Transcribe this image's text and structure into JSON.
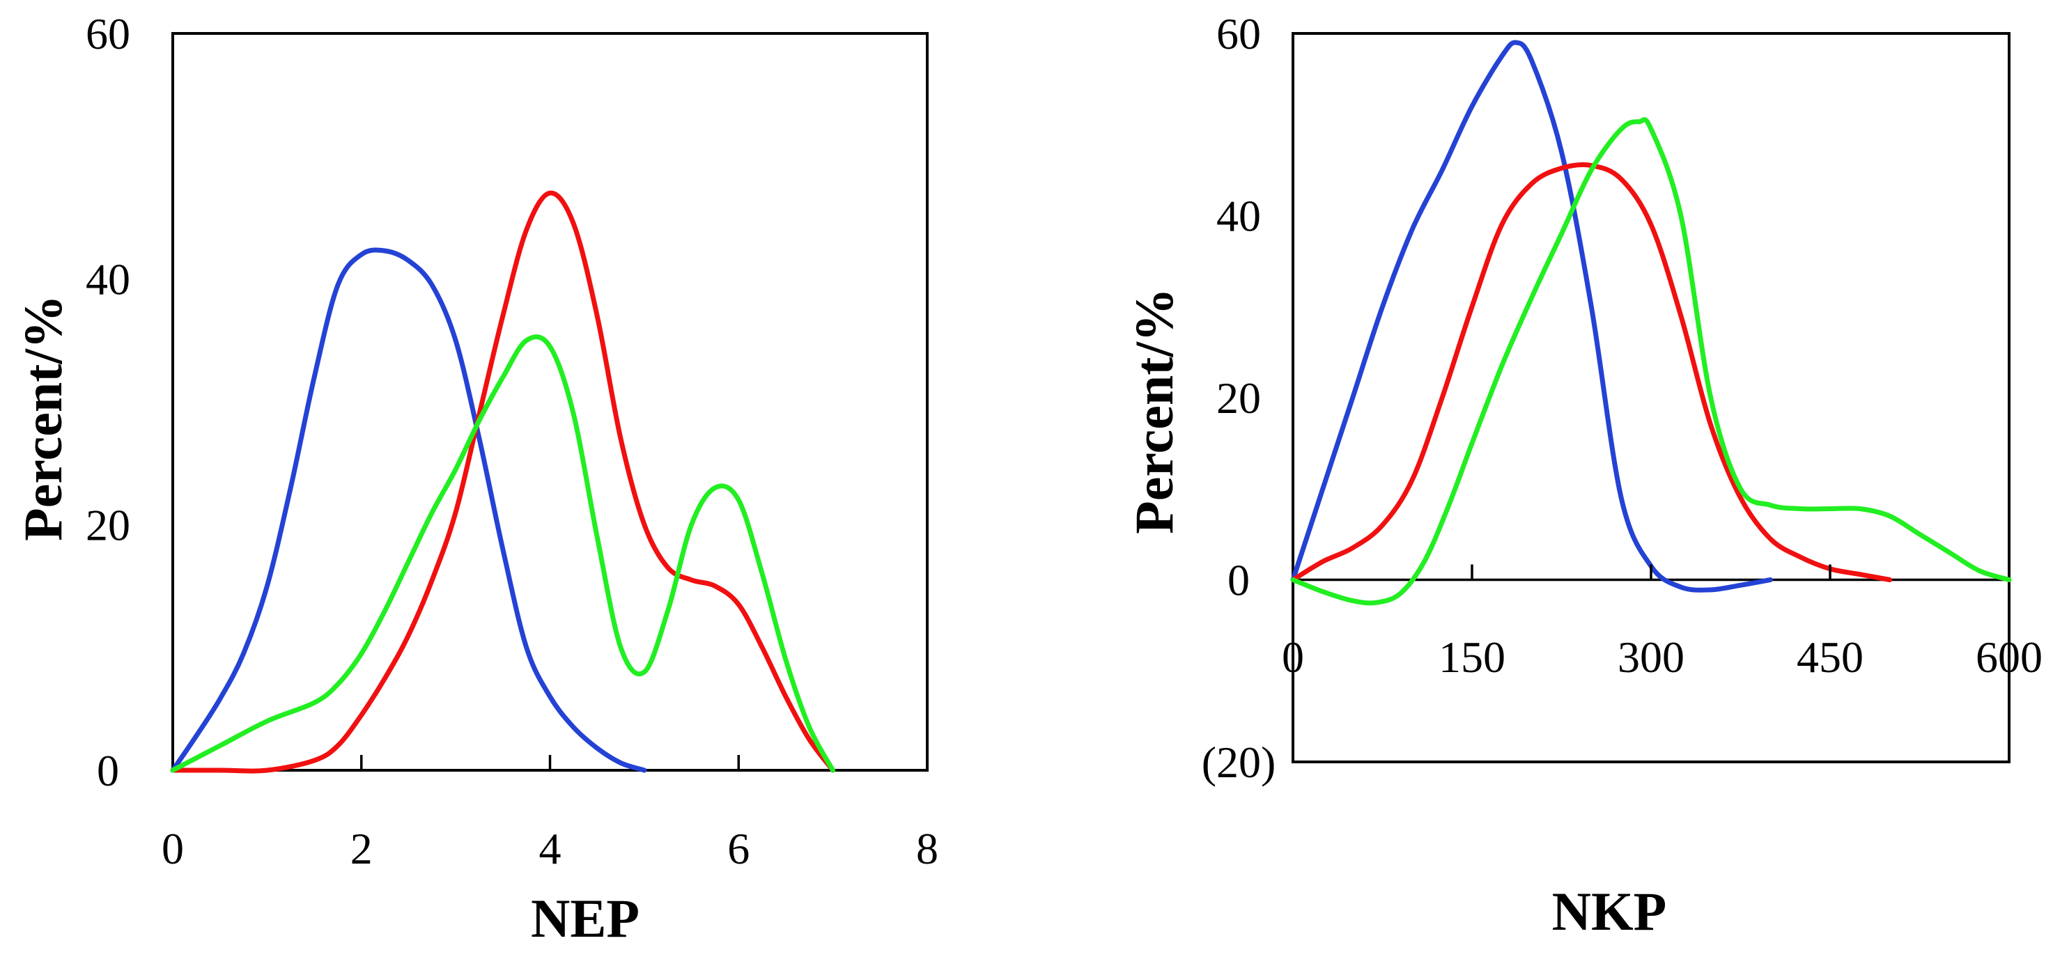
{
  "chart_data": [
    {
      "type": "line",
      "title": "",
      "xlabel": "NEP",
      "ylabel": "Percent/%",
      "xlim": [
        0,
        8
      ],
      "ylim": [
        0,
        60
      ],
      "xticks": [
        0,
        2,
        4,
        6,
        8
      ],
      "yticks": [
        0,
        20,
        40,
        60
      ],
      "xtick_labels": [
        "0",
        "2",
        "4",
        "6",
        "8"
      ],
      "ytick_labels": [
        "0",
        "20",
        "40",
        "60"
      ],
      "legend": [],
      "series": [
        {
          "name": "blue",
          "color": "#2442d4",
          "x": [
            0,
            0.25,
            0.5,
            0.75,
            1,
            1.25,
            1.5,
            1.75,
            2,
            2.25,
            2.5,
            2.75,
            3,
            3.25,
            3.5,
            3.75,
            4,
            4.25,
            4.5,
            4.75,
            5
          ],
          "y": [
            0,
            2.8,
            5.8,
            9.5,
            15,
            23,
            32,
            39.5,
            42,
            42.3,
            41.5,
            39.5,
            35,
            27,
            18,
            10,
            6,
            3.5,
            1.8,
            0.6,
            0
          ]
        },
        {
          "name": "red",
          "color": "#f01010",
          "x": [
            0,
            0.5,
            1,
            1.5,
            1.75,
            2,
            2.25,
            2.5,
            2.75,
            3,
            3.25,
            3.5,
            3.75,
            4,
            4.25,
            4.5,
            4.75,
            5,
            5.25,
            5.5,
            5.75,
            6,
            6.25,
            6.5,
            6.75,
            7
          ],
          "y": [
            0,
            0,
            0,
            0.8,
            2,
            4.5,
            7.5,
            11,
            15.5,
            21,
            29,
            37,
            44,
            47,
            44.5,
            37,
            27,
            20,
            16.5,
            15.5,
            15,
            13.5,
            10,
            6,
            2.5,
            0
          ]
        },
        {
          "name": "green",
          "color": "#22ee22",
          "x": [
            0,
            0.5,
            1,
            1.5,
            1.75,
            2,
            2.25,
            2.5,
            2.75,
            3,
            3.25,
            3.5,
            3.75,
            4,
            4.25,
            4.5,
            4.75,
            5,
            5.25,
            5.5,
            5.75,
            6,
            6.25,
            6.5,
            6.75,
            7
          ],
          "y": [
            0,
            2,
            4,
            5.5,
            7,
            9.5,
            13,
            17,
            21,
            24.5,
            28.5,
            32,
            35,
            34.5,
            29,
            19,
            10,
            8,
            13,
            20,
            23,
            22,
            16,
            9,
            3.5,
            0
          ]
        }
      ]
    },
    {
      "type": "line",
      "title": "",
      "xlabel": "NKP",
      "ylabel": "Percent/%",
      "xlim": [
        0,
        600
      ],
      "ylim": [
        -20,
        60
      ],
      "xticks": [
        0,
        150,
        300,
        450,
        600
      ],
      "yticks": [
        -20,
        0,
        20,
        40,
        60
      ],
      "xtick_labels": [
        "0",
        "150",
        "300",
        "450",
        "600"
      ],
      "ytick_labels": [
        "(20)",
        "0",
        "20",
        "40",
        "60"
      ],
      "legend": [],
      "series": [
        {
          "name": "blue",
          "color": "#2442d4",
          "x": [
            0,
            25,
            50,
            75,
            100,
            125,
            150,
            175,
            187,
            200,
            225,
            250,
            275,
            300,
            325,
            350,
            375,
            400
          ],
          "y": [
            0,
            10,
            20,
            30,
            38.5,
            45,
            52,
            57.5,
            59,
            57,
            47,
            30,
            9,
            1.5,
            -0.8,
            -1.1,
            -0.6,
            0
          ]
        },
        {
          "name": "red",
          "color": "#f01010",
          "x": [
            0,
            25,
            50,
            75,
            100,
            125,
            150,
            175,
            200,
            225,
            250,
            275,
            300,
            325,
            350,
            375,
            400,
            425,
            450,
            475,
            500
          ],
          "y": [
            0,
            2,
            3.5,
            6,
            11,
            20,
            30,
            39,
            43.5,
            45.2,
            45.5,
            44,
            39,
            29,
            17,
            9,
            4.5,
            2.5,
            1.2,
            0.6,
            0
          ]
        },
        {
          "name": "green",
          "color": "#22ee22",
          "x": [
            0,
            25,
            50,
            70,
            90,
            110,
            130,
            150,
            175,
            200,
            225,
            250,
            275,
            290,
            300,
            325,
            350,
            375,
            400,
            425,
            450,
            475,
            500,
            525,
            550,
            575,
            600
          ],
          "y": [
            0,
            -1.3,
            -2.3,
            -2.5,
            -1.5,
            2,
            8,
            15,
            23.5,
            31,
            38,
            45,
            49.5,
            50.3,
            49.5,
            40,
            20,
            10,
            8.2,
            7.8,
            7.8,
            7.8,
            7,
            5,
            3,
            1,
            0
          ]
        }
      ]
    }
  ]
}
